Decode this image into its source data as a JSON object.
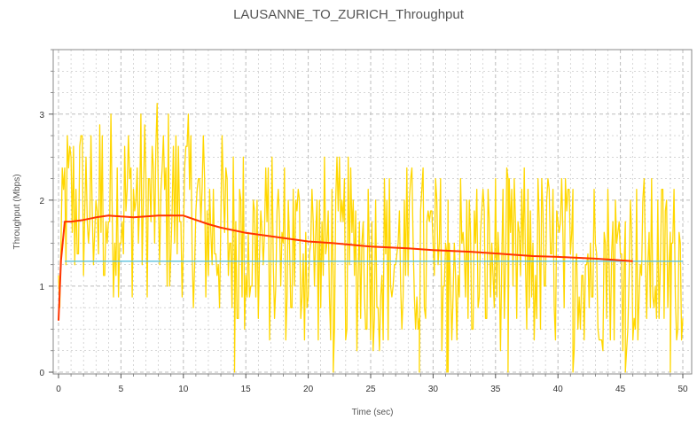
{
  "chart_data": {
    "type": "line",
    "title": "LAUSANNE_TO_ZURICH_Throughput",
    "xlabel": "Time (sec)",
    "ylabel": "Throughput (Mbps)",
    "xlim": [
      0,
      50
    ],
    "ylim": [
      0,
      3.75
    ],
    "x_ticks": [
      0,
      5,
      10,
      15,
      20,
      25,
      30,
      35,
      40,
      45,
      50
    ],
    "y_ticks": [
      0,
      1,
      2,
      3
    ],
    "grid": true,
    "colors": {
      "instantaneous": "#FFD700",
      "running_average": "#FF3300",
      "mean": "#5BC0DE",
      "grid": "#bdbdbd",
      "frame": "#888888"
    },
    "series": [
      {
        "name": "instantaneous",
        "style": "jagged",
        "sample_step_sec": 0.1,
        "envelope": [
          {
            "x": 0,
            "low": 0.15,
            "high": 1.6
          },
          {
            "x": 0.5,
            "low": 0.9,
            "high": 3.0
          },
          {
            "x": 3,
            "low": 0.9,
            "high": 3.1
          },
          {
            "x": 10,
            "low": 0.8,
            "high": 3.1
          },
          {
            "x": 15,
            "low": 0.3,
            "high": 2.6
          },
          {
            "x": 30,
            "low": 0.2,
            "high": 2.4
          },
          {
            "x": 50,
            "low": 0.3,
            "high": 2.3
          }
        ]
      },
      {
        "name": "running_average",
        "points": [
          [
            0,
            0.6
          ],
          [
            0.2,
            1.3
          ],
          [
            0.5,
            1.75
          ],
          [
            1,
            1.75
          ],
          [
            2,
            1.77
          ],
          [
            3,
            1.8
          ],
          [
            4,
            1.82
          ],
          [
            5,
            1.81
          ],
          [
            6,
            1.8
          ],
          [
            7,
            1.81
          ],
          [
            8,
            1.82
          ],
          [
            9,
            1.82
          ],
          [
            10,
            1.82
          ],
          [
            11,
            1.77
          ],
          [
            12,
            1.72
          ],
          [
            13,
            1.68
          ],
          [
            14,
            1.65
          ],
          [
            15,
            1.62
          ],
          [
            17,
            1.58
          ],
          [
            20,
            1.52
          ],
          [
            22,
            1.5
          ],
          [
            25,
            1.46
          ],
          [
            28,
            1.44
          ],
          [
            30,
            1.42
          ],
          [
            33,
            1.4
          ],
          [
            35,
            1.38
          ],
          [
            38,
            1.35
          ],
          [
            40,
            1.34
          ],
          [
            43,
            1.32
          ],
          [
            45,
            1.3
          ],
          [
            46,
            1.29
          ]
        ]
      },
      {
        "name": "mean",
        "points": [
          [
            0.5,
            1.29
          ],
          [
            50,
            1.29
          ]
        ]
      }
    ]
  }
}
